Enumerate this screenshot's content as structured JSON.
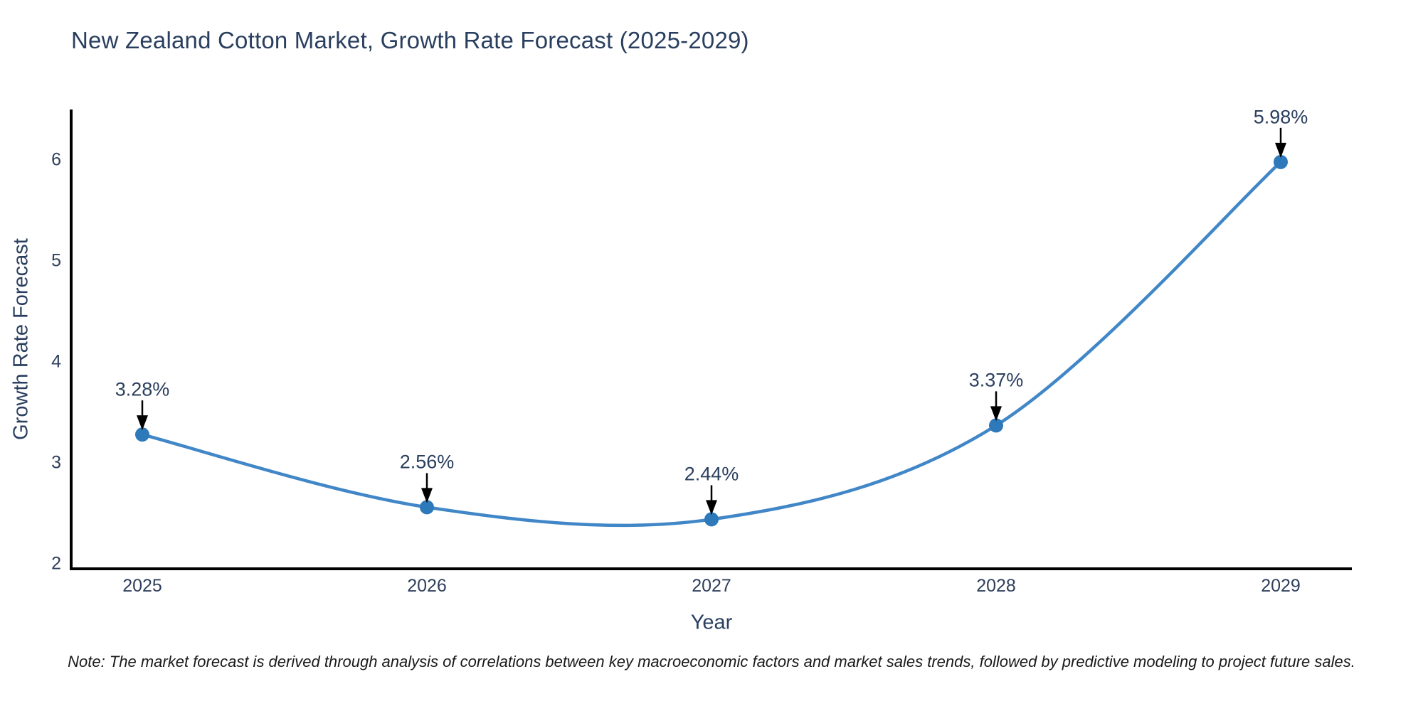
{
  "note": "Note: The market forecast is derived through analysis of correlations between key macroeconomic factors and market sales trends, followed by predictive modeling to project future sales.",
  "chart_data": {
    "type": "line",
    "title": "New Zealand Cotton Market, Growth Rate Forecast (2025-2029)",
    "xlabel": "Year",
    "ylabel": "Growth Rate Forecast",
    "categories": [
      "2025",
      "2026",
      "2027",
      "2028",
      "2029"
    ],
    "x": [
      2025,
      2026,
      2027,
      2028,
      2029
    ],
    "values": [
      3.28,
      2.56,
      2.44,
      3.37,
      5.98
    ],
    "point_labels": [
      "3.28%",
      "2.56%",
      "2.44%",
      "3.37%",
      "5.98%"
    ],
    "y_ticks": [
      2,
      3,
      4,
      5,
      6
    ],
    "x_tick_labels": [
      "2025",
      "2026",
      "2027",
      "2028",
      "2029"
    ],
    "y_tick_labels": [
      "2",
      "3",
      "4",
      "5",
      "6"
    ],
    "xlim": [
      2024.75,
      2029.25
    ],
    "ylim": [
      1.95,
      6.5
    ],
    "line_shape": "spline",
    "grid": false,
    "legend": "none",
    "marker_size": 10,
    "line_width": 4.5,
    "colors": {
      "line": "#4187c7",
      "marker": "#2e79ba",
      "arrow": "#000000",
      "spine": "#000000",
      "title_text": "#2a3f5f",
      "axis_text": "#2f3f5c",
      "note_text": "#1a1a1a",
      "background": "#ffffff"
    }
  }
}
